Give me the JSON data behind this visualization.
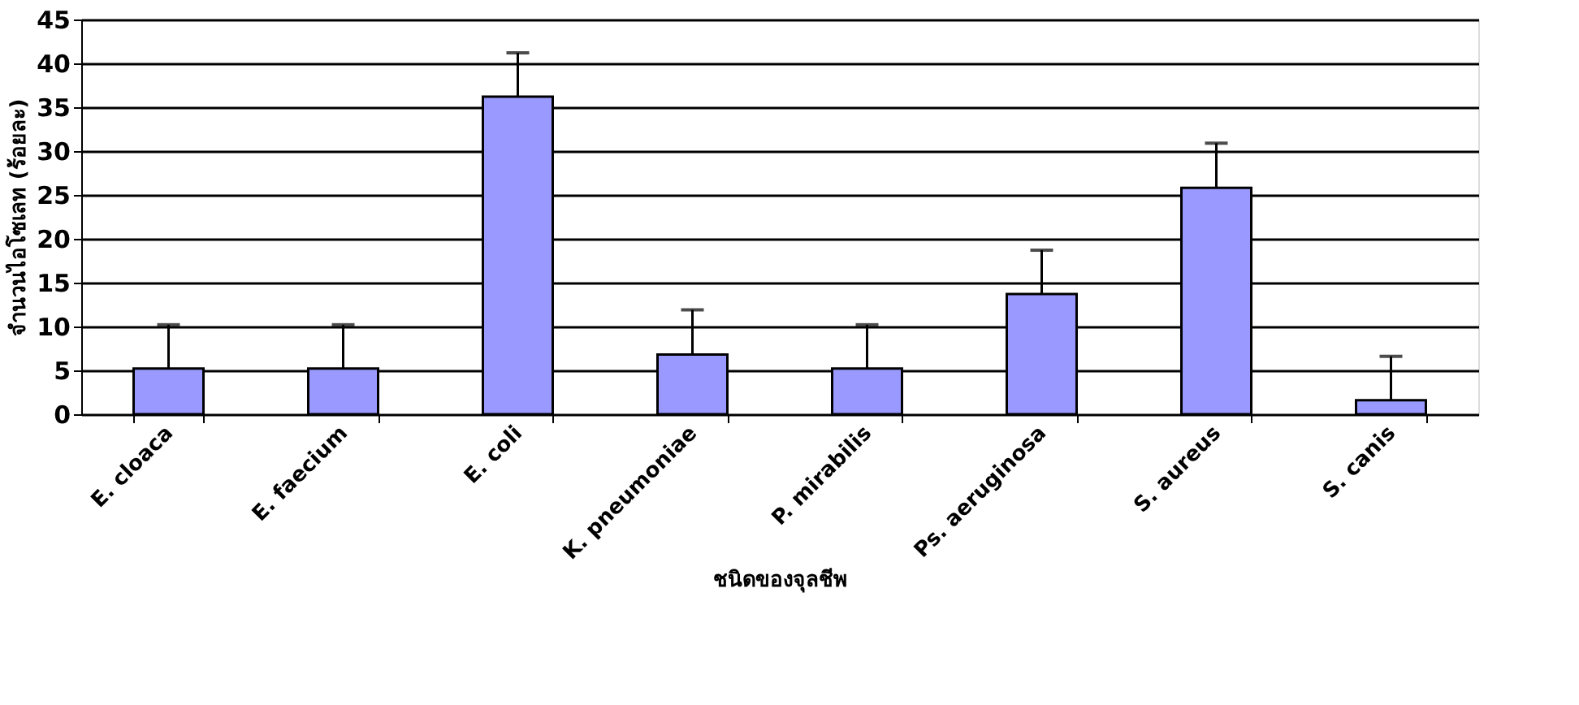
{
  "chart_data": {
    "type": "bar",
    "xlabel": "ชนิดของจุลชีพ",
    "ylabel": "จำนวนไอโซเลท (ร้อยละ)",
    "categories": [
      "E. cloaca",
      "E. faecium",
      "E. coli",
      "K. pneumoniae",
      "P. mirabilis",
      "Ps. aeruginosa",
      "S. aureus",
      "S. canis"
    ],
    "values": [
      5.2,
      5.2,
      36.2,
      6.8,
      5.2,
      13.7,
      25.8,
      1.6
    ],
    "errors": [
      [
        5.2,
        10.2
      ],
      [
        5.2,
        10.2
      ],
      [
        36.2,
        41.2
      ],
      [
        6.8,
        11.9
      ],
      [
        5.2,
        10.2
      ],
      [
        13.7,
        18.7
      ],
      [
        25.8,
        30.9
      ],
      [
        1.6,
        6.6
      ]
    ],
    "color": "#9999ff",
    "ylim": [
      0,
      45
    ],
    "yticks": [
      0,
      5,
      10,
      15,
      20,
      25,
      30,
      35,
      40,
      45
    ],
    "grid": "y"
  }
}
